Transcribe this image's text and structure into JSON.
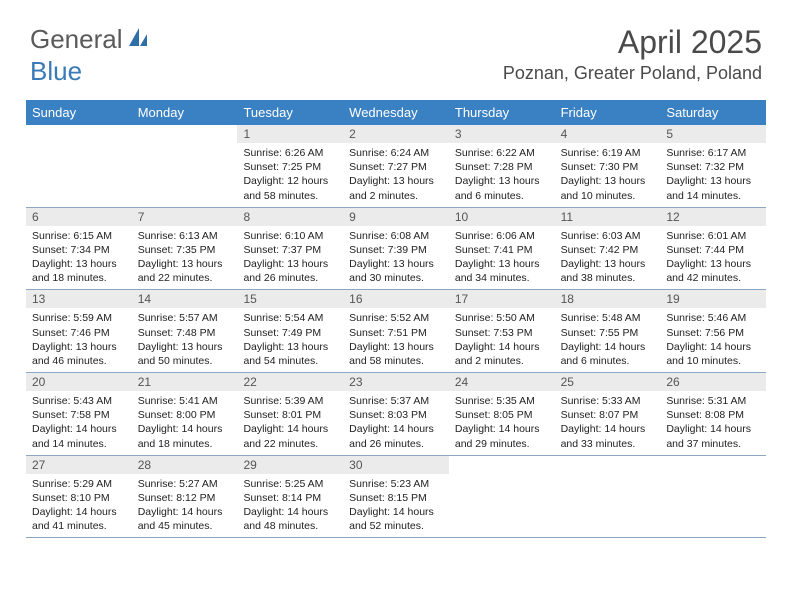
{
  "logo": {
    "text1": "General",
    "text2": "Blue"
  },
  "title": "April 2025",
  "location": "Poznan, Greater Poland, Poland",
  "colors": {
    "header_bg": "#3a81c4",
    "header_fg": "#ffffff",
    "daynum_bg": "#ebebeb",
    "row_border": "#8aa8c2",
    "logo_gray": "#5a5a5a",
    "logo_blue": "#3a7ab8"
  },
  "weekdays": [
    "Sunday",
    "Monday",
    "Tuesday",
    "Wednesday",
    "Thursday",
    "Friday",
    "Saturday"
  ],
  "weeks": [
    [
      null,
      null,
      {
        "d": "1",
        "sr": "6:26 AM",
        "ss": "7:25 PM",
        "dl": "12 hours and 58 minutes."
      },
      {
        "d": "2",
        "sr": "6:24 AM",
        "ss": "7:27 PM",
        "dl": "13 hours and 2 minutes."
      },
      {
        "d": "3",
        "sr": "6:22 AM",
        "ss": "7:28 PM",
        "dl": "13 hours and 6 minutes."
      },
      {
        "d": "4",
        "sr": "6:19 AM",
        "ss": "7:30 PM",
        "dl": "13 hours and 10 minutes."
      },
      {
        "d": "5",
        "sr": "6:17 AM",
        "ss": "7:32 PM",
        "dl": "13 hours and 14 minutes."
      }
    ],
    [
      {
        "d": "6",
        "sr": "6:15 AM",
        "ss": "7:34 PM",
        "dl": "13 hours and 18 minutes."
      },
      {
        "d": "7",
        "sr": "6:13 AM",
        "ss": "7:35 PM",
        "dl": "13 hours and 22 minutes."
      },
      {
        "d": "8",
        "sr": "6:10 AM",
        "ss": "7:37 PM",
        "dl": "13 hours and 26 minutes."
      },
      {
        "d": "9",
        "sr": "6:08 AM",
        "ss": "7:39 PM",
        "dl": "13 hours and 30 minutes."
      },
      {
        "d": "10",
        "sr": "6:06 AM",
        "ss": "7:41 PM",
        "dl": "13 hours and 34 minutes."
      },
      {
        "d": "11",
        "sr": "6:03 AM",
        "ss": "7:42 PM",
        "dl": "13 hours and 38 minutes."
      },
      {
        "d": "12",
        "sr": "6:01 AM",
        "ss": "7:44 PM",
        "dl": "13 hours and 42 minutes."
      }
    ],
    [
      {
        "d": "13",
        "sr": "5:59 AM",
        "ss": "7:46 PM",
        "dl": "13 hours and 46 minutes."
      },
      {
        "d": "14",
        "sr": "5:57 AM",
        "ss": "7:48 PM",
        "dl": "13 hours and 50 minutes."
      },
      {
        "d": "15",
        "sr": "5:54 AM",
        "ss": "7:49 PM",
        "dl": "13 hours and 54 minutes."
      },
      {
        "d": "16",
        "sr": "5:52 AM",
        "ss": "7:51 PM",
        "dl": "13 hours and 58 minutes."
      },
      {
        "d": "17",
        "sr": "5:50 AM",
        "ss": "7:53 PM",
        "dl": "14 hours and 2 minutes."
      },
      {
        "d": "18",
        "sr": "5:48 AM",
        "ss": "7:55 PM",
        "dl": "14 hours and 6 minutes."
      },
      {
        "d": "19",
        "sr": "5:46 AM",
        "ss": "7:56 PM",
        "dl": "14 hours and 10 minutes."
      }
    ],
    [
      {
        "d": "20",
        "sr": "5:43 AM",
        "ss": "7:58 PM",
        "dl": "14 hours and 14 minutes."
      },
      {
        "d": "21",
        "sr": "5:41 AM",
        "ss": "8:00 PM",
        "dl": "14 hours and 18 minutes."
      },
      {
        "d": "22",
        "sr": "5:39 AM",
        "ss": "8:01 PM",
        "dl": "14 hours and 22 minutes."
      },
      {
        "d": "23",
        "sr": "5:37 AM",
        "ss": "8:03 PM",
        "dl": "14 hours and 26 minutes."
      },
      {
        "d": "24",
        "sr": "5:35 AM",
        "ss": "8:05 PM",
        "dl": "14 hours and 29 minutes."
      },
      {
        "d": "25",
        "sr": "5:33 AM",
        "ss": "8:07 PM",
        "dl": "14 hours and 33 minutes."
      },
      {
        "d": "26",
        "sr": "5:31 AM",
        "ss": "8:08 PM",
        "dl": "14 hours and 37 minutes."
      }
    ],
    [
      {
        "d": "27",
        "sr": "5:29 AM",
        "ss": "8:10 PM",
        "dl": "14 hours and 41 minutes."
      },
      {
        "d": "28",
        "sr": "5:27 AM",
        "ss": "8:12 PM",
        "dl": "14 hours and 45 minutes."
      },
      {
        "d": "29",
        "sr": "5:25 AM",
        "ss": "8:14 PM",
        "dl": "14 hours and 48 minutes."
      },
      {
        "d": "30",
        "sr": "5:23 AM",
        "ss": "8:15 PM",
        "dl": "14 hours and 52 minutes."
      },
      null,
      null,
      null
    ]
  ],
  "labels": {
    "sunrise": "Sunrise:",
    "sunset": "Sunset:",
    "daylight": "Daylight:"
  }
}
